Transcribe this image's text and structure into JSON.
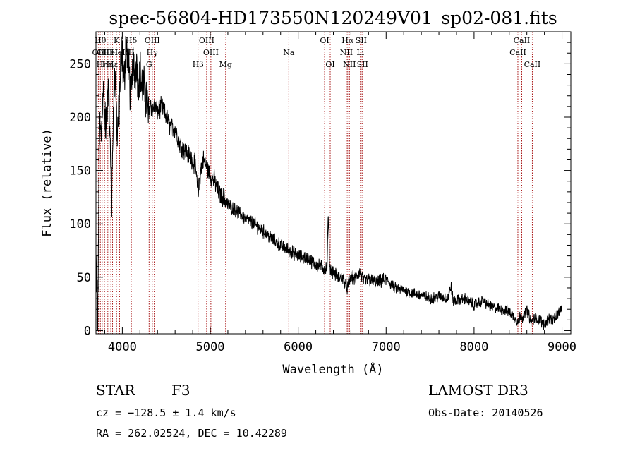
{
  "chart_data": {
    "type": "line",
    "title": "spec-56804-HD173550N120249V01_sp02-081.fits",
    "xlabel": "Wavelength (Å)",
    "ylabel": "Flux (relative)",
    "xlim": [
      3700,
      9100
    ],
    "ylim": [
      -3,
      280
    ],
    "x_ticks": [
      4000,
      5000,
      6000,
      7000,
      8000,
      9000
    ],
    "y_ticks": [
      0,
      50,
      100,
      150,
      200,
      250
    ],
    "line_color": "#000000",
    "marker_color": "#a00000",
    "series": [
      {
        "name": "flux",
        "x": [
          3700,
          3720,
          3740,
          3760,
          3780,
          3800,
          3820,
          3840,
          3860,
          3880,
          3900,
          3920,
          3940,
          3960,
          3980,
          4000,
          4020,
          4040,
          4060,
          4080,
          4100,
          4120,
          4140,
          4160,
          4180,
          4200,
          4220,
          4250,
          4280,
          4300,
          4320,
          4340,
          4360,
          4400,
          4450,
          4500,
          4550,
          4600,
          4650,
          4700,
          4750,
          4800,
          4830,
          4861,
          4890,
          4920,
          4950,
          5000,
          5050,
          5100,
          5150,
          5200,
          5250,
          5300,
          5400,
          5500,
          5600,
          5700,
          5800,
          5900,
          6000,
          6100,
          6200,
          6300,
          6330,
          6340,
          6360,
          6400,
          6450,
          6500,
          6560,
          6600,
          6650,
          6700,
          6750,
          6800,
          6900,
          7000,
          7100,
          7200,
          7300,
          7400,
          7500,
          7600,
          7700,
          7740,
          7760,
          7800,
          7900,
          8000,
          8100,
          8200,
          8300,
          8400,
          8500,
          8530,
          8560,
          8600,
          8650,
          8700,
          8750,
          8800,
          8850,
          8900,
          8950,
          9000
        ],
        "y": [
          65,
          5,
          190,
          180,
          230,
          200,
          190,
          240,
          175,
          120,
          220,
          240,
          185,
          200,
          245,
          260,
          230,
          270,
          255,
          240,
          210,
          250,
          240,
          255,
          235,
          245,
          230,
          225,
          215,
          200,
          215,
          205,
          210,
          205,
          210,
          200,
          190,
          190,
          175,
          170,
          165,
          160,
          155,
          128,
          150,
          160,
          155,
          145,
          140,
          128,
          125,
          118,
          115,
          112,
          105,
          100,
          93,
          86,
          80,
          75,
          70,
          68,
          62,
          58,
          60,
          110,
          58,
          55,
          50,
          50,
          40,
          50,
          48,
          55,
          46,
          48,
          45,
          48,
          40,
          38,
          35,
          33,
          30,
          32,
          30,
          42,
          28,
          28,
          30,
          24,
          28,
          22,
          20,
          18,
          8,
          15,
          12,
          20,
          8,
          12,
          10,
          5,
          12,
          10,
          15,
          22
        ]
      }
    ],
    "lines": [
      {
        "w": 3727,
        "label": "OII",
        "row": 2
      },
      {
        "w": 3750,
        "label": "Hθ",
        "row": 1
      },
      {
        "w": 3771,
        "label": "Hη",
        "row": 3
      },
      {
        "w": 3798,
        "label": "OIII",
        "row": 2
      },
      {
        "w": 3835,
        "label": "Hη",
        "row": 3
      },
      {
        "w": 3869,
        "label": "HeI",
        "row": 2
      },
      {
        "w": 3889,
        "label": "Hε",
        "row": 3
      },
      {
        "w": 3934,
        "label": "K",
        "row": 1
      },
      {
        "w": 3969,
        "label": "HeII",
        "row": 2
      },
      {
        "w": 4101,
        "label": "Hδ",
        "row": 1
      },
      {
        "w": 4102,
        "label": "II",
        "row": 2
      },
      {
        "w": 4304,
        "label": "G",
        "row": 3
      },
      {
        "w": 4340,
        "label": "OIII",
        "row": 1
      },
      {
        "w": 4340,
        "label": "Hγ",
        "row": 2
      },
      {
        "w": 4363,
        "label": "",
        "row": 0
      },
      {
        "w": 4861,
        "label": "Hβ",
        "row": 3
      },
      {
        "w": 4959,
        "label": "OIII",
        "row": 1
      },
      {
        "w": 5007,
        "label": "OIII",
        "row": 2
      },
      {
        "w": 5175,
        "label": "Mg",
        "row": 3
      },
      {
        "w": 5893,
        "label": "Na",
        "row": 2
      },
      {
        "w": 6300,
        "label": "OI",
        "row": 1
      },
      {
        "w": 6364,
        "label": "OI",
        "row": 3
      },
      {
        "w": 6548,
        "label": "NII",
        "row": 2
      },
      {
        "w": 6563,
        "label": "Hα",
        "row": 1
      },
      {
        "w": 6583,
        "label": "NII",
        "row": 3
      },
      {
        "w": 6707,
        "label": "Li",
        "row": 2
      },
      {
        "w": 6716,
        "label": "SII",
        "row": 1
      },
      {
        "w": 6731,
        "label": "SII",
        "row": 3
      },
      {
        "w": 8498,
        "label": "CaII",
        "row": 2
      },
      {
        "w": 8542,
        "label": "CaII",
        "row": 1
      },
      {
        "w": 8662,
        "label": "CaII",
        "row": 3
      }
    ]
  },
  "info": {
    "object": "STAR",
    "subclass": "F3",
    "survey": "LAMOST DR3",
    "cz": "cz = −128.5 ± 1.4 km/s",
    "obs_date": "Obs-Date: 20140526",
    "coords": "RA = 262.02524, DEC =  10.42289"
  }
}
